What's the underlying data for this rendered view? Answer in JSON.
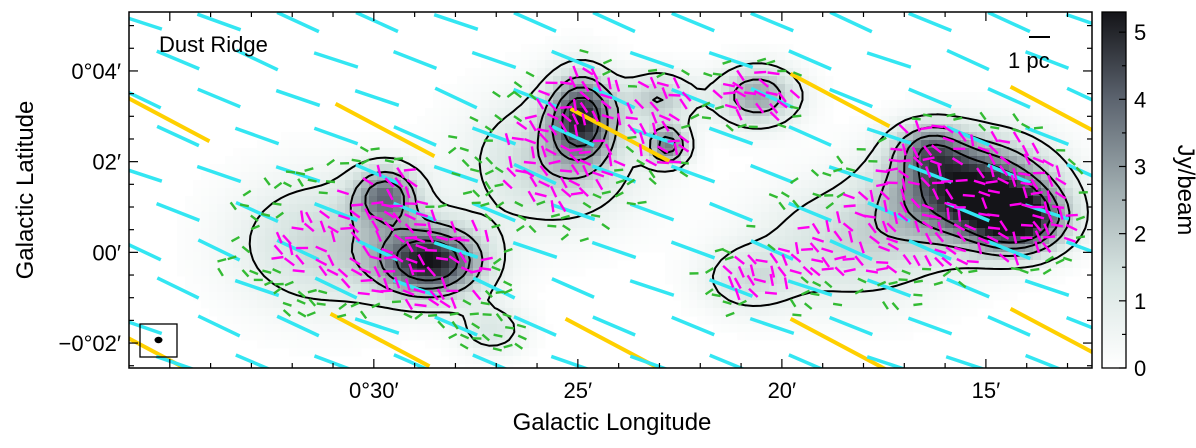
{
  "chart_data": {
    "type": "heatmap",
    "title": "",
    "xlabel": "Galactic Longitude",
    "ylabel": "Galactic Latitude",
    "x_unit": "arcmin of longitude offset from 0°",
    "xlim": [
      36.0,
      12.4
    ],
    "ylim": [
      -2.55,
      5.3
    ],
    "x_ticks": [
      {
        "value": 30,
        "label": "0°30′"
      },
      {
        "value": 25,
        "label": "25′"
      },
      {
        "value": 20,
        "label": "20′"
      },
      {
        "value": 15,
        "label": "15′"
      }
    ],
    "y_ticks": [
      {
        "value": 4,
        "label": "0°04′"
      },
      {
        "value": 2,
        "label": "02′"
      },
      {
        "value": 0,
        "label": "00′"
      },
      {
        "value": -2,
        "label": "−0°02′"
      }
    ],
    "region_label": "Dust Ridge",
    "scale_bar_label": "1 pc",
    "colorbar": {
      "label": "Jy/beam",
      "range": [
        0,
        5.3
      ],
      "ticks": [
        0,
        1,
        2,
        3,
        4,
        5
      ],
      "colormap": [
        "#ffffff",
        "#d9e6e3",
        "#a0adb0",
        "#5d6570",
        "#141418"
      ]
    },
    "colors": {
      "contour": "#000000",
      "large_scale_vectors": "#ffd000",
      "planck_vectors": "#33e6f2",
      "high_pol_vectors": "#ff00f0",
      "low_pol_vectors": "#33bb33"
    },
    "clumps": [
      {
        "l": 28.6,
        "b": -0.2,
        "peak": 5.0,
        "sl": 0.9,
        "sb": 0.55
      },
      {
        "l": 29.7,
        "b": 1.25,
        "peak": 3.3,
        "sl": 0.55,
        "sb": 0.45
      },
      {
        "l": 31.2,
        "b": 0.2,
        "peak": 1.7,
        "sl": 1.5,
        "sb": 1.0
      },
      {
        "l": 24.9,
        "b": 3.0,
        "peak": 4.2,
        "sl": 0.55,
        "sb": 0.65
      },
      {
        "l": 25.6,
        "b": 2.0,
        "peak": 1.8,
        "sl": 1.4,
        "sb": 1.0
      },
      {
        "l": 22.8,
        "b": 2.35,
        "peak": 3.3,
        "sl": 0.35,
        "sb": 0.3
      },
      {
        "l": 23.0,
        "b": 3.4,
        "peak": 1.9,
        "sl": 0.6,
        "sb": 0.4
      },
      {
        "l": 20.6,
        "b": 3.45,
        "peak": 2.8,
        "sl": 0.7,
        "sb": 0.45
      },
      {
        "l": 16.4,
        "b": 2.3,
        "peak": 2.3,
        "sl": 0.6,
        "sb": 0.4
      },
      {
        "l": 15.4,
        "b": 1.4,
        "peak": 5.2,
        "sl": 1.3,
        "sb": 0.75
      },
      {
        "l": 14.2,
        "b": 0.7,
        "peak": 4.6,
        "sl": 0.8,
        "sb": 0.5
      },
      {
        "l": 18.2,
        "b": 0.2,
        "peak": 1.6,
        "sl": 1.6,
        "sb": 0.9
      },
      {
        "l": 27.1,
        "b": -1.7,
        "peak": 1.2,
        "sl": 0.6,
        "sb": 0.4
      },
      {
        "l": 20.8,
        "b": -0.6,
        "peak": 1.3,
        "sl": 0.8,
        "sb": 0.5
      }
    ],
    "contour_levels": [
      0.8,
      2.0,
      3.0,
      4.0
    ]
  }
}
